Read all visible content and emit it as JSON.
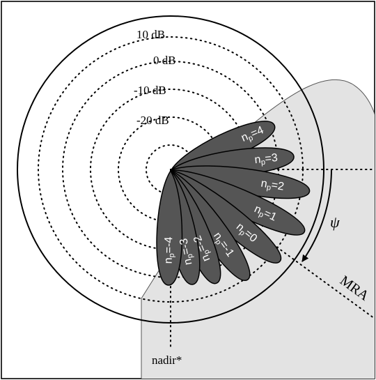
{
  "ring_labels": [
    "10 dB",
    "0 dB",
    "-10 dB",
    "-20 dB"
  ],
  "beams": [
    {
      "label": "n",
      "sub": "p",
      "eq": "=4"
    },
    {
      "label": "n",
      "sub": "p",
      "eq": "=3"
    },
    {
      "label": "n",
      "sub": "p",
      "eq": "=2"
    },
    {
      "label": "n",
      "sub": "p",
      "eq": "=1"
    },
    {
      "label": "n",
      "sub": "p",
      "eq": "=0"
    },
    {
      "label": "n",
      "sub": "p",
      "eq": "=-1"
    },
    {
      "label": "n",
      "sub": "p",
      "eq": "=-2"
    },
    {
      "label": "n",
      "sub": "p",
      "eq": "=-3"
    },
    {
      "label": "n",
      "sub": "p",
      "eq": "=-4"
    }
  ],
  "psi_label": "ψ",
  "mra_label": "MRA",
  "nadir_label": "nadir*",
  "colors": {
    "beam_fill": "#555555",
    "sector_fill": "#e3e3e3",
    "outline": "#000000",
    "beam_text": "#ffffff"
  }
}
